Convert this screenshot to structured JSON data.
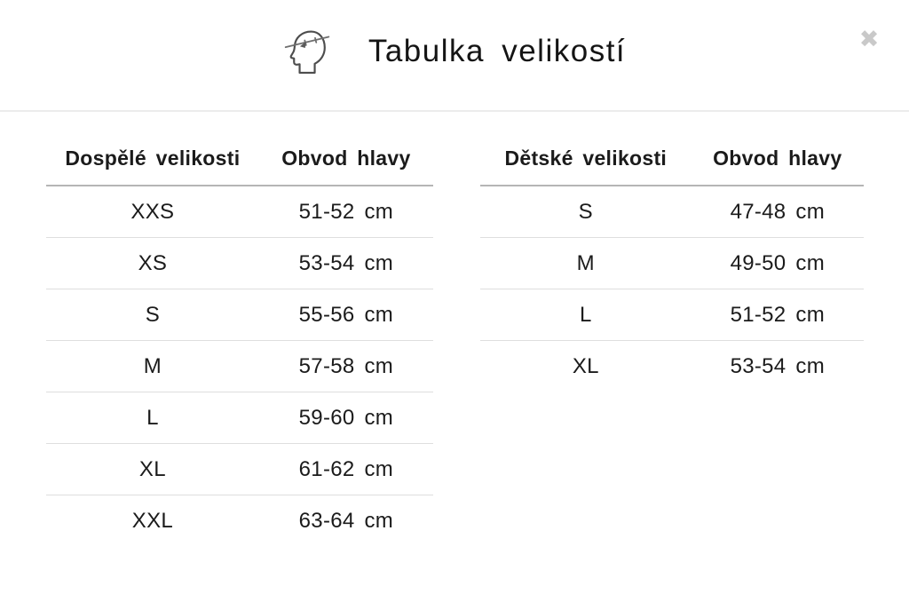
{
  "modal": {
    "title": "Tabulka velikostí",
    "close_icon": "✖"
  },
  "colors": {
    "text": "#1b1b1b",
    "header_divider": "#ececec",
    "table_head_line": "#b5b5b5",
    "row_line": "#dedede",
    "close_gray": "#c9c9c9",
    "icon_stroke": "#4d4d4d"
  },
  "tables": [
    {
      "id": "adult",
      "columns": [
        "Dospělé velikosti",
        "Obvod hlavy"
      ],
      "rows": [
        [
          "XXS",
          "51-52 cm"
        ],
        [
          "XS",
          "53-54 cm"
        ],
        [
          "S",
          "55-56 cm"
        ],
        [
          "M",
          "57-58 cm"
        ],
        [
          "L",
          "59-60 cm"
        ],
        [
          "XL",
          "61-62 cm"
        ],
        [
          "XXL",
          "63-64 cm"
        ]
      ]
    },
    {
      "id": "children",
      "columns": [
        "Dětské velikosti",
        "Obvod hlavy"
      ],
      "rows": [
        [
          "S",
          "47-48 cm"
        ],
        [
          "M",
          "49-50 cm"
        ],
        [
          "L",
          "51-52 cm"
        ],
        [
          "XL",
          "53-54 cm"
        ]
      ]
    }
  ]
}
